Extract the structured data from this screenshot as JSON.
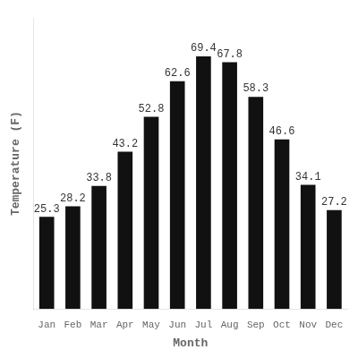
{
  "chart_data": {
    "type": "bar",
    "categories": [
      "Jan",
      "Feb",
      "Mar",
      "Apr",
      "May",
      "Jun",
      "Jul",
      "Aug",
      "Sep",
      "Oct",
      "Nov",
      "Dec"
    ],
    "values": [
      25.3,
      28.2,
      33.8,
      43.2,
      52.8,
      62.6,
      69.4,
      67.8,
      58.3,
      46.6,
      34.1,
      27.2
    ],
    "color": "#111111",
    "x_label": "Month",
    "y_label": "Temperature (F)",
    "ylim": [
      0,
      80
    ],
    "grid": false,
    "data_labels": true,
    "tick_labels": "x"
  }
}
